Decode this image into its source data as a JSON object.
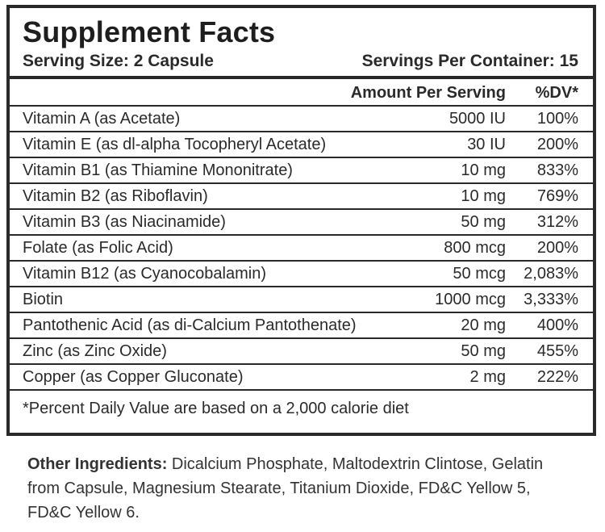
{
  "panel": {
    "title": "Supplement Facts",
    "serving_size": "Serving Size: 2 Capsule",
    "servings_per_container": "Servings Per Container: 15",
    "header_amount": "Amount Per Serving",
    "header_dv": "%DV*"
  },
  "nutrients": [
    {
      "name": "Vitamin A (as Acetate)",
      "amount": "5000 IU",
      "dv": "100%"
    },
    {
      "name": "Vitamin E (as dl-alpha Tocopheryl Acetate)",
      "amount": "30 IU",
      "dv": "200%"
    },
    {
      "name": "Vitamin B1 (as Thiamine Mononitrate)",
      "amount": "10 mg",
      "dv": "833%"
    },
    {
      "name": "Vitamin B2 (as Riboflavin)",
      "amount": "10 mg",
      "dv": "769%"
    },
    {
      "name": "Vitamin B3 (as Niacinamide)",
      "amount": "50 mg",
      "dv": "312%"
    },
    {
      "name": "Folate (as Folic Acid)",
      "amount": "800 mcg",
      "dv": "200%"
    },
    {
      "name": "Vitamin B12 (as Cyanocobalamin)",
      "amount": "50 mcg",
      "dv": "2,083%"
    },
    {
      "name": "Biotin",
      "amount": "1000 mcg",
      "dv": "3,333%"
    },
    {
      "name": "Pantothenic Acid (as di-Calcium Pantothenate)",
      "amount": "20 mg",
      "dv": "400%"
    },
    {
      "name": "Zinc (as Zinc Oxide)",
      "amount": "50 mg",
      "dv": "455%"
    },
    {
      "name": "Copper (as Copper Gluconate)",
      "amount": "2 mg",
      "dv": "222%"
    }
  ],
  "footnote": "*Percent Daily Value are based on a 2,000 calorie diet",
  "other_ingredients": {
    "label": "Other Ingredients:",
    "text": " Dicalcium Phosphate, Maltodextrin Clintose, Gelatin from Capsule, Magnesium Stearate, Titanium Dioxide, FD&C Yellow 5, FD&C Yellow 6."
  }
}
